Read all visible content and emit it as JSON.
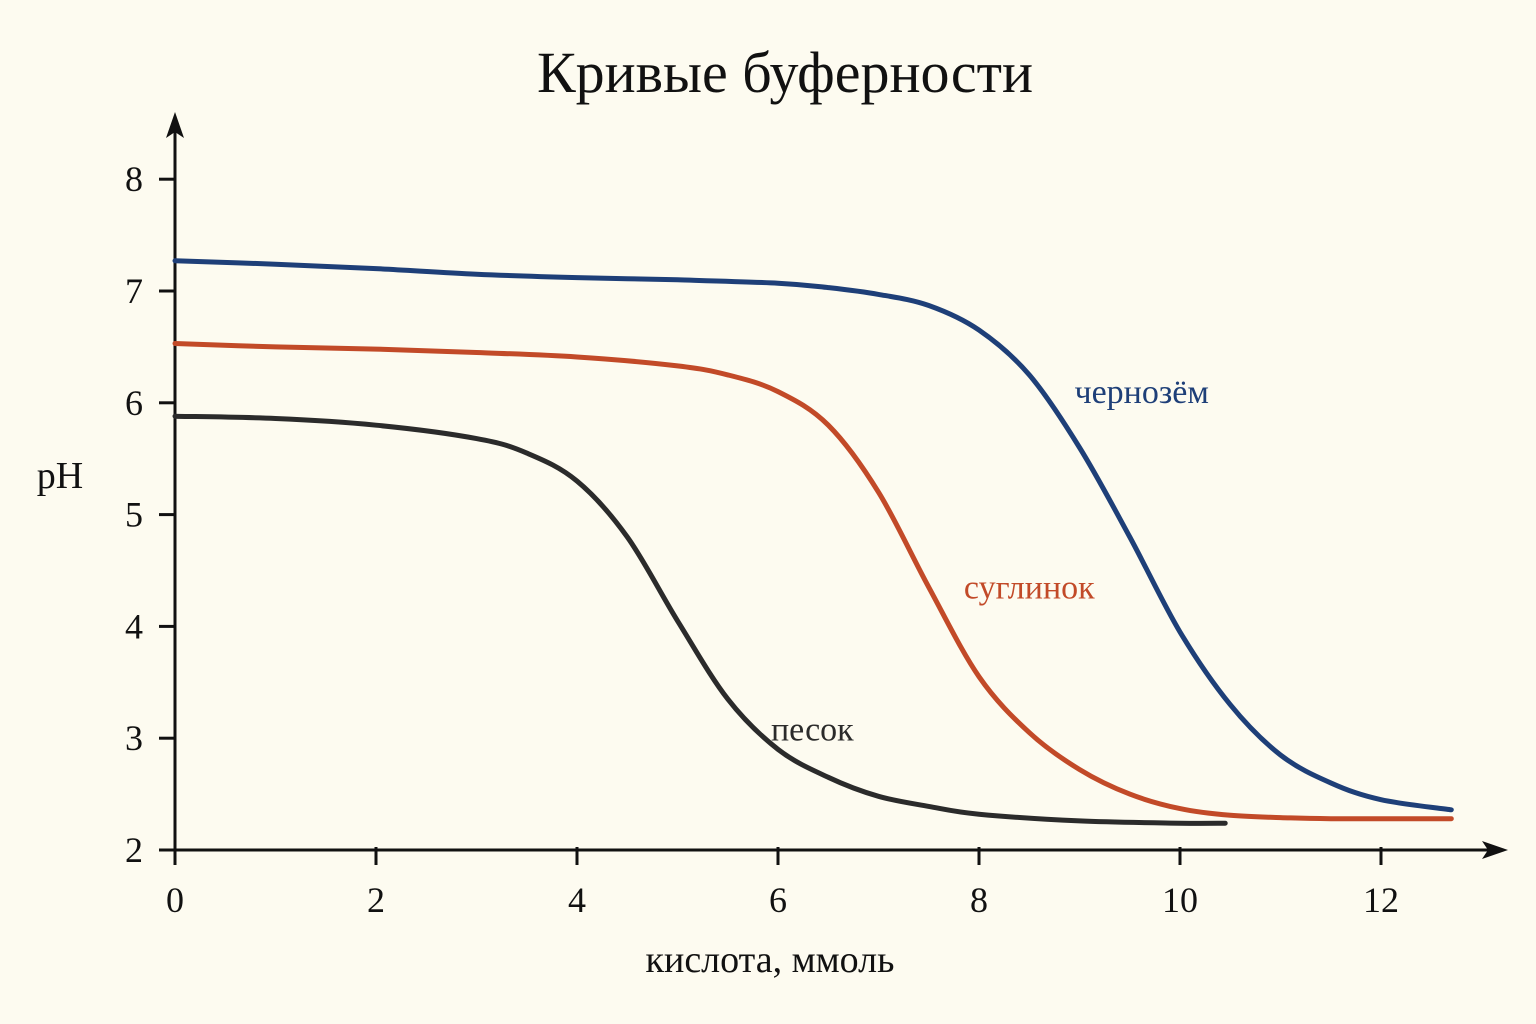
{
  "chart_data": {
    "type": "line",
    "title": "Кривые буферности",
    "xlabel": "кислота, ммоль",
    "ylabel": "pH",
    "xlim": [
      0,
      13.3
    ],
    "ylim": [
      2,
      8.6
    ],
    "x_ticks": [
      0,
      2,
      4,
      6,
      8,
      10,
      12
    ],
    "y_ticks": [
      2,
      3,
      4,
      5,
      6,
      7,
      8
    ],
    "grid": false,
    "series": [
      {
        "name": "чернозём",
        "color": "#1e3f78",
        "x": [
          0,
          1,
          2,
          3,
          4,
          5,
          6,
          6.5,
          7,
          7.5,
          8,
          8.5,
          9,
          9.5,
          10,
          10.5,
          11,
          11.5,
          12,
          12.7
        ],
        "y": [
          7.27,
          7.24,
          7.2,
          7.15,
          7.12,
          7.1,
          7.07,
          7.03,
          6.97,
          6.87,
          6.65,
          6.25,
          5.6,
          4.8,
          3.95,
          3.3,
          2.85,
          2.6,
          2.45,
          2.36
        ]
      },
      {
        "name": "суглинок",
        "color": "#c24a28",
        "x": [
          0,
          1,
          2,
          3,
          4,
          5,
          5.5,
          6,
          6.5,
          7,
          7.5,
          8,
          8.5,
          9,
          9.5,
          10,
          10.5,
          11,
          11.5,
          12.7
        ],
        "y": [
          6.53,
          6.5,
          6.48,
          6.45,
          6.41,
          6.33,
          6.25,
          6.1,
          5.8,
          5.2,
          4.35,
          3.55,
          3.05,
          2.72,
          2.5,
          2.37,
          2.31,
          2.29,
          2.28,
          2.28
        ]
      },
      {
        "name": "песок",
        "color": "#2b2b2b",
        "x": [
          0,
          1,
          2,
          3,
          3.5,
          4,
          4.5,
          5,
          5.5,
          6,
          6.5,
          7,
          7.5,
          8,
          9,
          10,
          10.45
        ],
        "y": [
          5.88,
          5.86,
          5.8,
          5.68,
          5.55,
          5.3,
          4.8,
          4.05,
          3.35,
          2.9,
          2.65,
          2.48,
          2.39,
          2.32,
          2.26,
          2.24,
          2.24
        ]
      }
    ],
    "annotations": [
      "чернозём",
      "суглинок",
      "песок"
    ]
  }
}
